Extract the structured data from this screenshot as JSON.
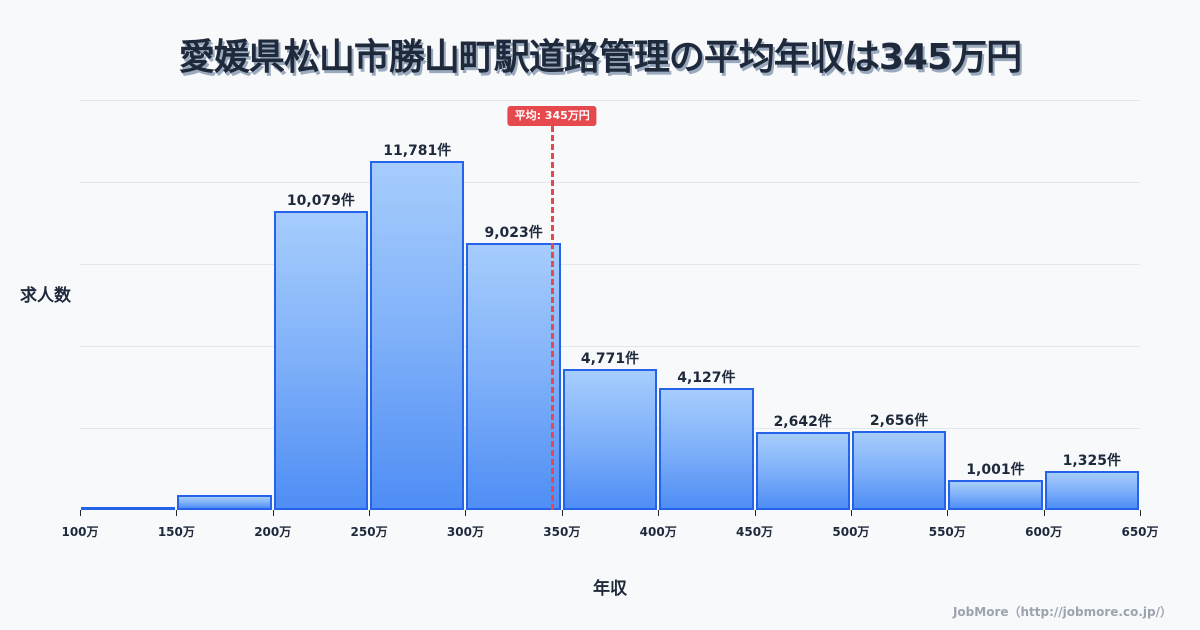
{
  "title": "愛媛県松山市勝山町駅道路管理の平均年収は345万円",
  "y_axis_label": "求人数",
  "x_axis_label": "年収",
  "average": {
    "label": "平均: 345万円",
    "value": 345,
    "color": "#e5484d"
  },
  "credit": "JobMore（http://jobmore.co.jp/）",
  "colors": {
    "bar_border": "#2563eb",
    "bar_top": "#a6cdfc",
    "bar_bottom": "#4f8ef5",
    "text": "#1e293b",
    "background": "#f8f9fb"
  },
  "bars": [
    {
      "range": "100-150万",
      "value": 0,
      "label": ""
    },
    {
      "range": "150-200万",
      "value": 500,
      "label": ""
    },
    {
      "range": "200-250万",
      "value": 10079,
      "label": "10,079件"
    },
    {
      "range": "250-300万",
      "value": 11781,
      "label": "11,781件"
    },
    {
      "range": "300-350万",
      "value": 9023,
      "label": "9,023件"
    },
    {
      "range": "350-400万",
      "value": 4771,
      "label": "4,771件"
    },
    {
      "range": "400-450万",
      "value": 4127,
      "label": "4,127件"
    },
    {
      "range": "450-500万",
      "value": 2642,
      "label": "2,642件"
    },
    {
      "range": "500-550万",
      "value": 2656,
      "label": "2,656件"
    },
    {
      "range": "550-600万",
      "value": 1001,
      "label": "1,001件"
    },
    {
      "range": "600-650万",
      "value": 1325,
      "label": "1,325件"
    }
  ],
  "x_ticks": [
    "100万",
    "150万",
    "200万",
    "250万",
    "300万",
    "350万",
    "400万",
    "450万",
    "500万",
    "550万",
    "600万",
    "650万"
  ],
  "chart_data": {
    "type": "bar",
    "title": "愛媛県松山市勝山町駅道路管理の平均年収は345万円",
    "xlabel": "年収",
    "ylabel": "求人数",
    "categories": [
      "100-150万",
      "150-200万",
      "200-250万",
      "250-300万",
      "300-350万",
      "350-400万",
      "400-450万",
      "450-500万",
      "500-550万",
      "550-600万",
      "600-650万"
    ],
    "values": [
      0,
      500,
      10079,
      11781,
      9023,
      4771,
      4127,
      2642,
      2656,
      1001,
      1325
    ],
    "x_tick_labels": [
      "100万",
      "150万",
      "200万",
      "250万",
      "300万",
      "350万",
      "400万",
      "450万",
      "500万",
      "550万",
      "600万",
      "650万"
    ],
    "annotations": [
      {
        "type": "vline",
        "x": 345,
        "label": "平均: 345万円"
      }
    ],
    "data_labels": [
      "",
      "",
      "10,079件",
      "11,781件",
      "9,023件",
      "4,771件",
      "4,127件",
      "2,642件",
      "2,656件",
      "1,001件",
      "1,325件"
    ],
    "ylim": [
      0,
      13840
    ],
    "grid": true,
    "legend": "none"
  }
}
